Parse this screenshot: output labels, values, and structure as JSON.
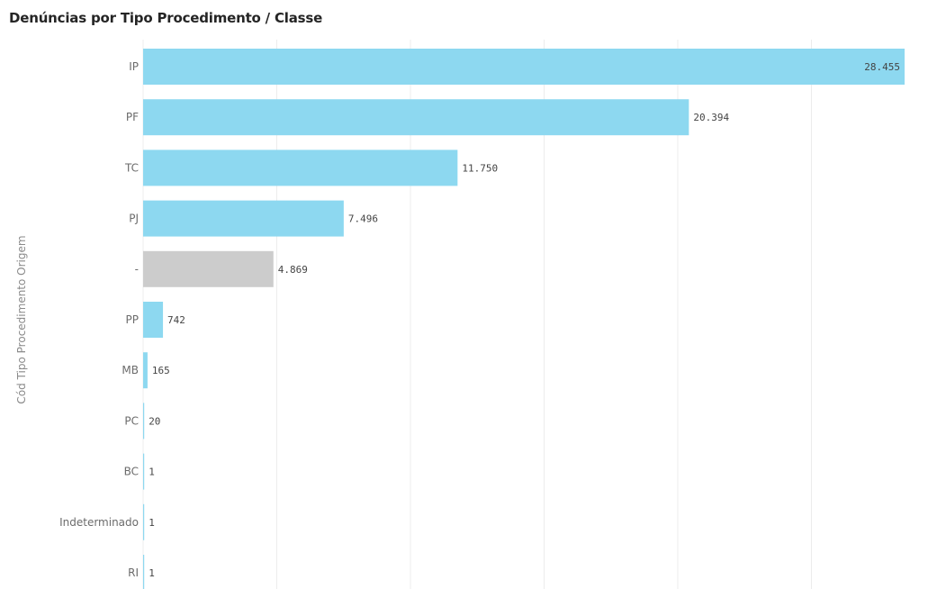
{
  "chart_data": {
    "type": "bar",
    "orientation": "horizontal",
    "title": "Denúncias por Tipo Procedimento / Classe",
    "ylabel": "Cód Tipo Procedimento Origem",
    "xlabel": "",
    "categories": [
      "IP",
      "PF",
      "TC",
      "PJ",
      "-",
      "PP",
      "MB",
      "PC",
      "BC",
      "Indeterminado",
      "RI"
    ],
    "values": [
      28455,
      20394,
      11750,
      7496,
      4869,
      742,
      165,
      20,
      1,
      1,
      1
    ],
    "value_labels": [
      "28.455",
      "20.394",
      "11.750",
      "7.496",
      "4.869",
      "742",
      "165",
      "20",
      "1",
      "1",
      "1"
    ],
    "xlim": [
      0,
      28455
    ],
    "grid": true,
    "legend": "none",
    "colors": {
      "default": "#8dd8f0",
      "highlight": "#cccccc",
      "highlight_category": "-"
    }
  }
}
